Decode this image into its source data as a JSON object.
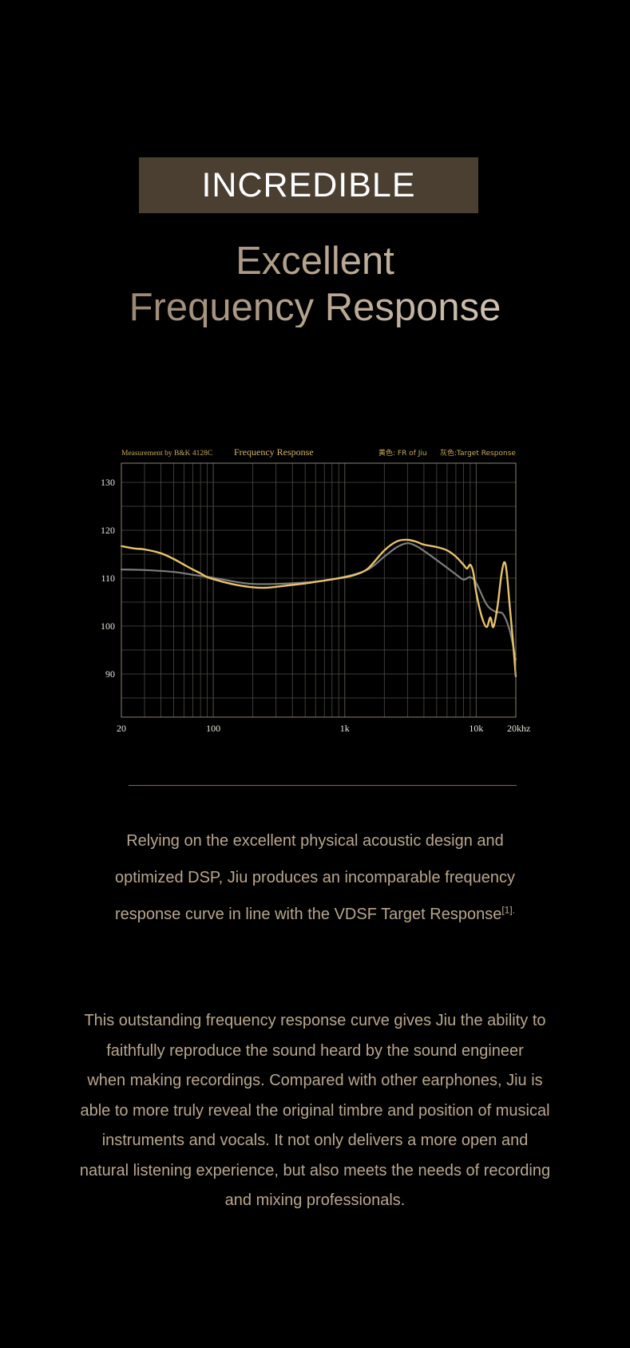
{
  "banner": {
    "text": "INCREDIBLE"
  },
  "headline": {
    "line1": "Excellent",
    "line2": "Frequency Response"
  },
  "chart_data": {
    "type": "line",
    "title": "Frequency Response",
    "subtitle": "Measurement by B&K 4128C",
    "legend": [
      {
        "label": "黄色: FR of Jiu",
        "color": "#e7c46b"
      },
      {
        "label": "灰色:Target Response",
        "color": "#7d7d7d"
      }
    ],
    "x_scale": "log",
    "xlim": [
      20,
      20000
    ],
    "ylim": [
      81,
      134
    ],
    "x_ticks": [
      {
        "value": 20,
        "label": "20"
      },
      {
        "value": 100,
        "label": "100"
      },
      {
        "value": 1000,
        "label": "1k"
      },
      {
        "value": 10000,
        "label": "10k"
      },
      {
        "value": 20000,
        "label": "20khz"
      }
    ],
    "y_ticks": [
      130,
      120,
      110,
      100,
      90
    ],
    "grid": true,
    "series": [
      {
        "name": "FR of Jiu",
        "color": "#e7c46b",
        "points": [
          [
            20,
            116.7
          ],
          [
            25,
            116.2
          ],
          [
            30,
            116.0
          ],
          [
            40,
            115.2
          ],
          [
            50,
            114.0
          ],
          [
            60,
            112.8
          ],
          [
            70,
            111.8
          ],
          [
            80,
            111.0
          ],
          [
            90,
            110.2
          ],
          [
            100,
            109.8
          ],
          [
            120,
            109.2
          ],
          [
            150,
            108.6
          ],
          [
            200,
            108.1
          ],
          [
            250,
            108.0
          ],
          [
            300,
            108.2
          ],
          [
            400,
            108.6
          ],
          [
            500,
            108.9
          ],
          [
            700,
            109.5
          ],
          [
            1000,
            110.2
          ],
          [
            1200,
            110.7
          ],
          [
            1500,
            112.0
          ],
          [
            2000,
            115.8
          ],
          [
            2500,
            117.7
          ],
          [
            3000,
            118.0
          ],
          [
            3500,
            117.6
          ],
          [
            4000,
            117.0
          ],
          [
            5000,
            116.5
          ],
          [
            6000,
            115.8
          ],
          [
            7000,
            114.5
          ],
          [
            8000,
            112.8
          ],
          [
            8500,
            112.0
          ],
          [
            9000,
            112.8
          ],
          [
            9500,
            111.2
          ],
          [
            10000,
            107.0
          ],
          [
            11000,
            102.0
          ],
          [
            12000,
            99.8
          ],
          [
            12800,
            101.8
          ],
          [
            13500,
            99.8
          ],
          [
            14500,
            104.0
          ],
          [
            15500,
            110.5
          ],
          [
            16300,
            113.3
          ],
          [
            17000,
            111.5
          ],
          [
            18000,
            104.0
          ],
          [
            19000,
            97.0
          ],
          [
            20000,
            89.5
          ]
        ]
      },
      {
        "name": "Target Response",
        "color": "#7d7d7d",
        "points": [
          [
            20,
            111.8
          ],
          [
            30,
            111.7
          ],
          [
            50,
            111.3
          ],
          [
            70,
            110.7
          ],
          [
            100,
            110.1
          ],
          [
            150,
            109.2
          ],
          [
            200,
            108.8
          ],
          [
            300,
            108.8
          ],
          [
            500,
            109.1
          ],
          [
            700,
            109.5
          ],
          [
            1000,
            110.3
          ],
          [
            1500,
            111.8
          ],
          [
            2000,
            114.5
          ],
          [
            2500,
            116.5
          ],
          [
            3000,
            117.3
          ],
          [
            3500,
            116.7
          ],
          [
            4000,
            115.7
          ],
          [
            5000,
            113.8
          ],
          [
            7000,
            110.8
          ],
          [
            8000,
            109.7
          ],
          [
            9000,
            110.2
          ],
          [
            10000,
            109.0
          ],
          [
            12000,
            104.5
          ],
          [
            14000,
            103.0
          ],
          [
            16000,
            102.5
          ],
          [
            18000,
            99.0
          ],
          [
            20000,
            93.0
          ]
        ]
      }
    ]
  },
  "paragraph1": {
    "line1": "Relying on the excellent physical acoustic design and",
    "line2": "optimized DSP, Jiu produces an incomparable frequency",
    "line3": "response curve in line with the VDSF Target Response",
    "footnote": "[1]."
  },
  "paragraph2": {
    "line1": "This outstanding frequency response curve gives Jiu the ability to",
    "line2": "faithfully reproduce the sound heard by the sound engineer",
    "line3": "when making recordings. Compared with other earphones, Jiu is",
    "line4": "able to more truly reveal the original timbre and position of musical",
    "line5": "instruments and vocals. It not only delivers a more open and",
    "line6": "natural listening experience, but also meets the needs of recording",
    "line7": "and mixing professionals."
  },
  "colors": {
    "background": "#000000",
    "banner_bg": "#4a3f31",
    "body_text": "#b8a68f",
    "gold_accent": "#e7c46b",
    "frame": "#8a8378",
    "gridline": "#4e4b46"
  }
}
